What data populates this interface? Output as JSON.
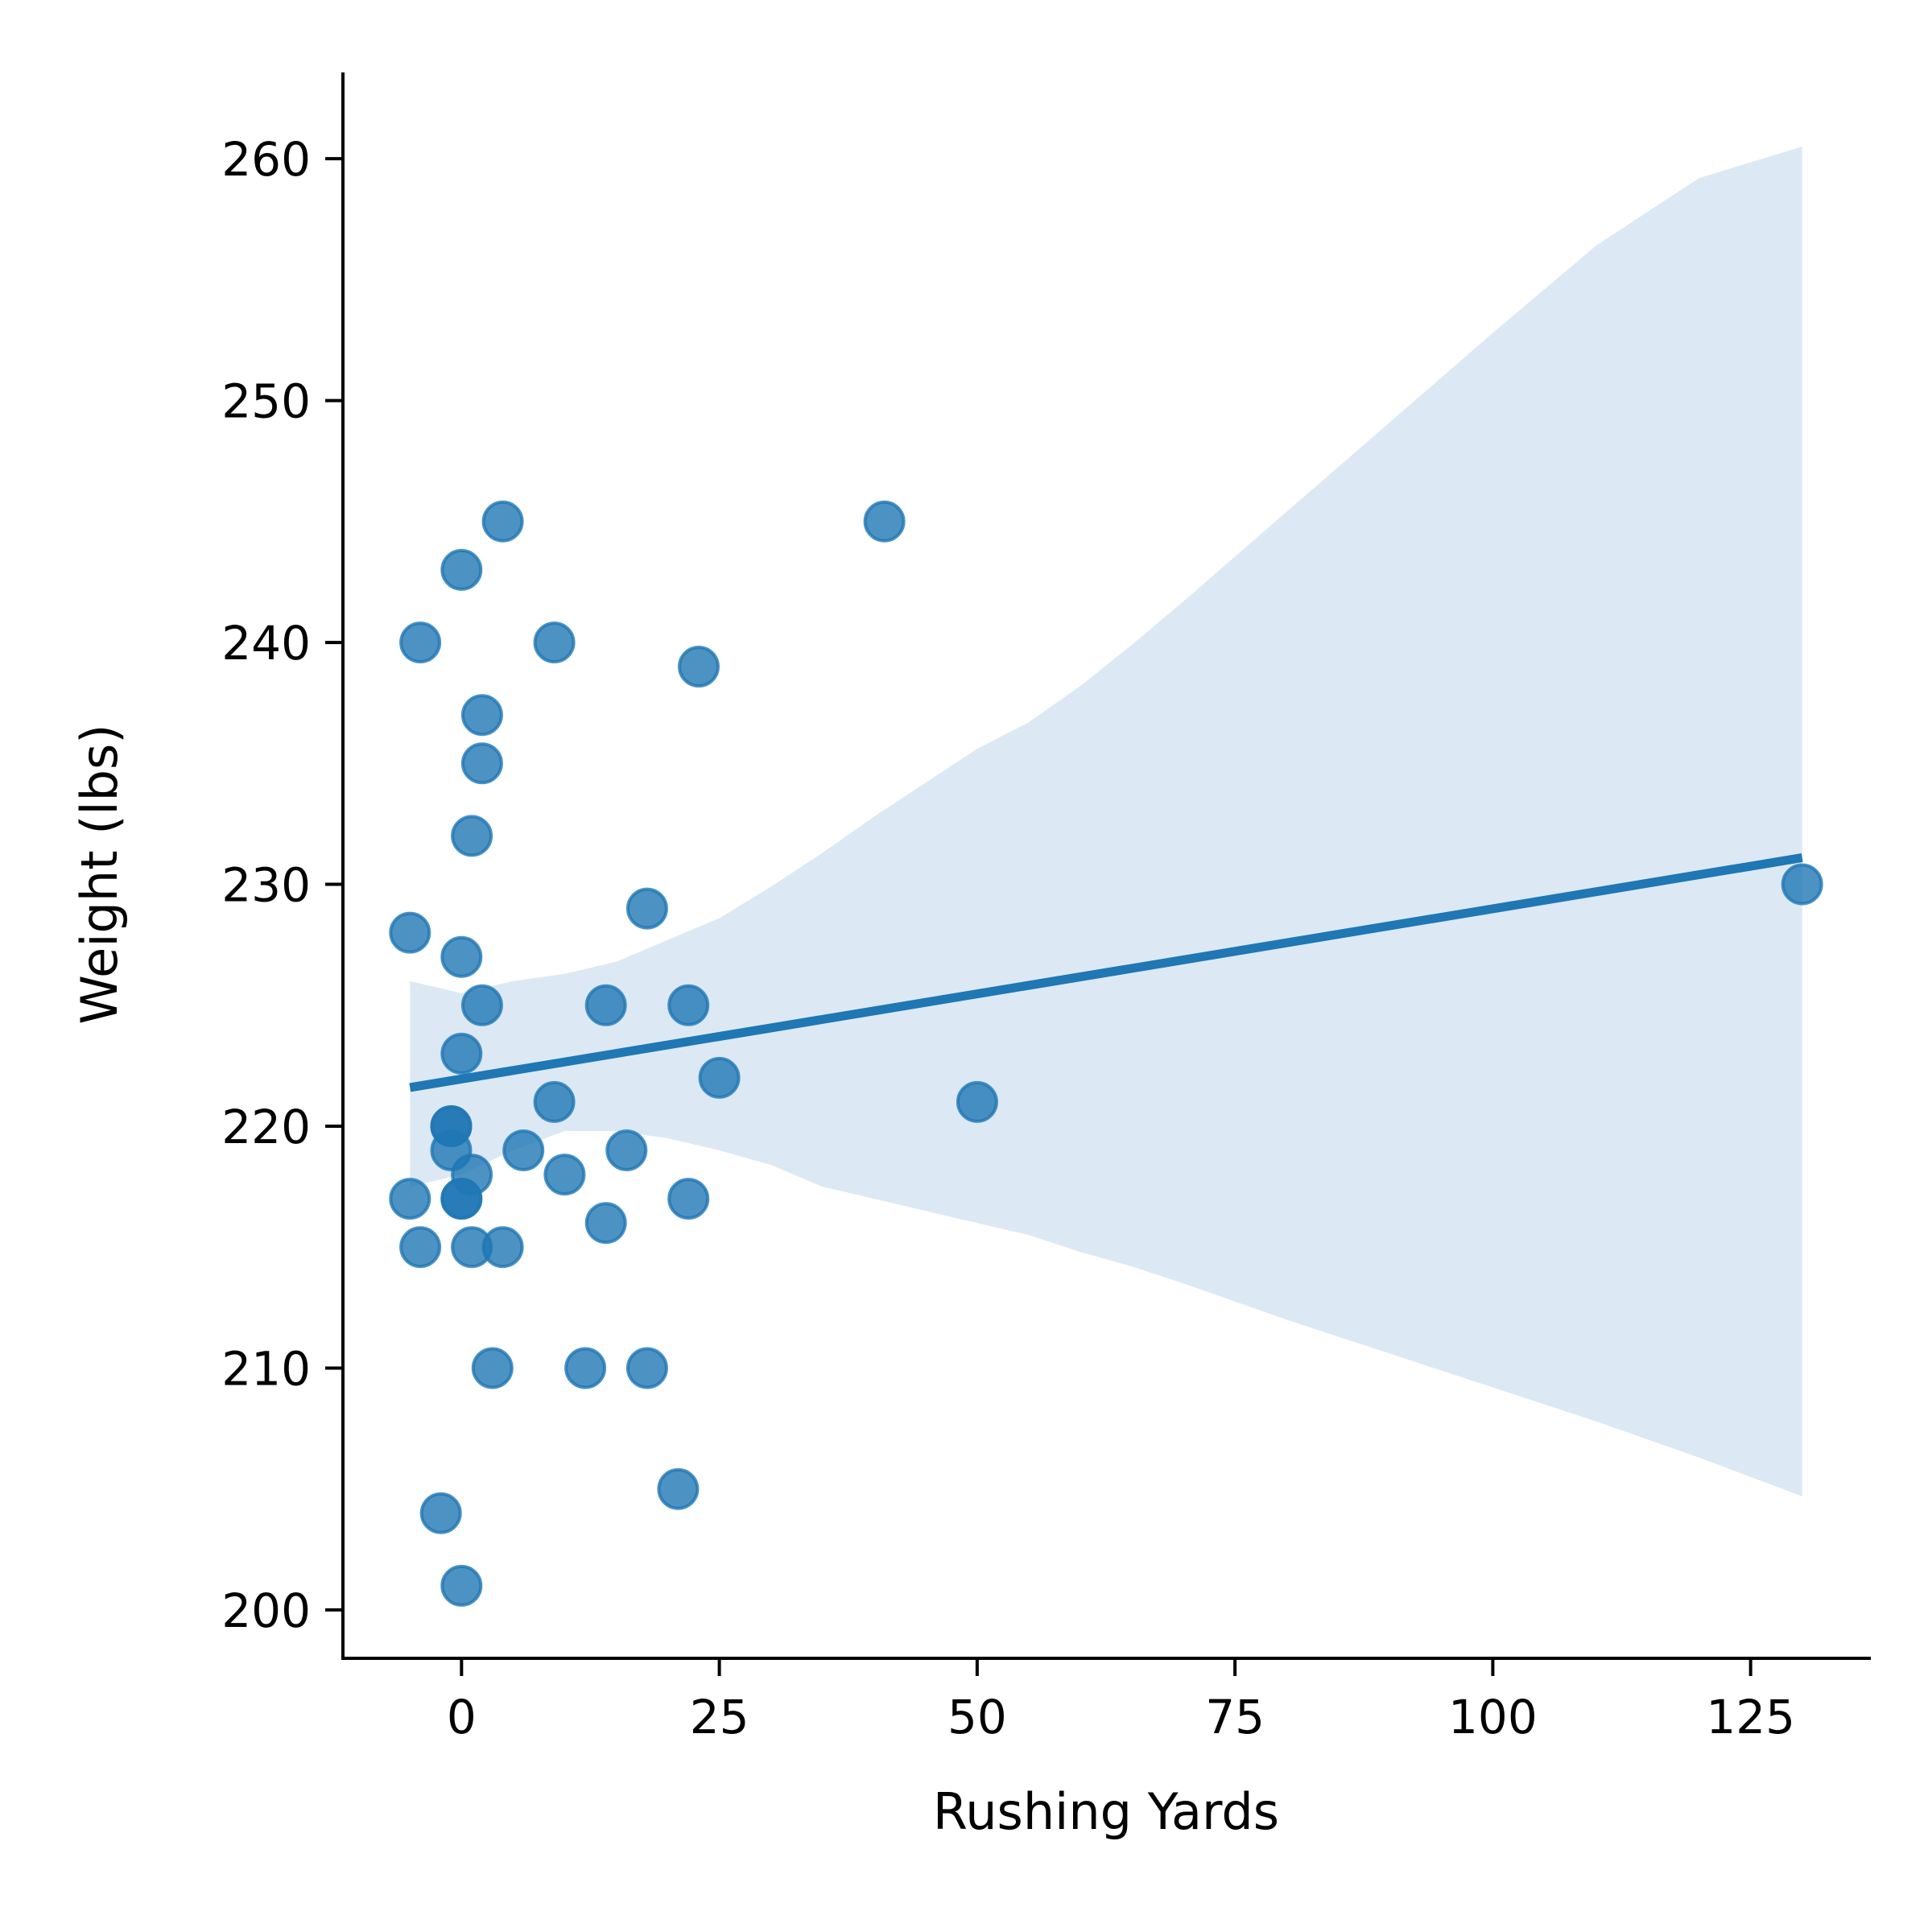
{
  "chart_data": {
    "type": "scatter",
    "title": "",
    "xlabel": "Rushing Yards",
    "ylabel": "Weight (lbs)",
    "xlim": [
      -11.5,
      136.5
    ],
    "ylim": [
      198,
      263.5
    ],
    "xticks": [
      0,
      25,
      50,
      75,
      100,
      125
    ],
    "yticks": [
      200,
      210,
      220,
      230,
      240,
      250,
      260
    ],
    "xtick_labels": [
      "0",
      "25",
      "50",
      "75",
      "100",
      "125"
    ],
    "ytick_labels": [
      "200",
      "210",
      "220",
      "230",
      "240",
      "250",
      "260"
    ],
    "grid": false,
    "legend": "none",
    "colors": {
      "points": "#1f77b4",
      "line": "#1f77b4",
      "band": "#dce9f4",
      "axis": "#000000"
    },
    "points": [
      {
        "x": 4,
        "y": 245
      },
      {
        "x": 41,
        "y": 245
      },
      {
        "x": 0,
        "y": 243
      },
      {
        "x": -4,
        "y": 240
      },
      {
        "x": 9,
        "y": 240
      },
      {
        "x": 23,
        "y": 239
      },
      {
        "x": 2,
        "y": 237
      },
      {
        "x": 2,
        "y": 235
      },
      {
        "x": 1,
        "y": 232
      },
      {
        "x": 18,
        "y": 229
      },
      {
        "x": 130,
        "y": 230
      },
      {
        "x": -5,
        "y": 228
      },
      {
        "x": 0,
        "y": 227
      },
      {
        "x": 2,
        "y": 225
      },
      {
        "x": 14,
        "y": 225
      },
      {
        "x": 22,
        "y": 225
      },
      {
        "x": 0,
        "y": 223
      },
      {
        "x": 25,
        "y": 222
      },
      {
        "x": 9,
        "y": 221
      },
      {
        "x": 50,
        "y": 221
      },
      {
        "x": -1,
        "y": 220
      },
      {
        "x": -1,
        "y": 220
      },
      {
        "x": -1,
        "y": 219
      },
      {
        "x": 6,
        "y": 219
      },
      {
        "x": 16,
        "y": 219
      },
      {
        "x": 1,
        "y": 218
      },
      {
        "x": 10,
        "y": 218
      },
      {
        "x": -5,
        "y": 217
      },
      {
        "x": 0,
        "y": 217
      },
      {
        "x": 0,
        "y": 217
      },
      {
        "x": 22,
        "y": 217
      },
      {
        "x": 14,
        "y": 216
      },
      {
        "x": -4,
        "y": 215
      },
      {
        "x": 1,
        "y": 215
      },
      {
        "x": 4,
        "y": 215
      },
      {
        "x": 3,
        "y": 210
      },
      {
        "x": 12,
        "y": 210
      },
      {
        "x": 18,
        "y": 210
      },
      {
        "x": 21,
        "y": 205
      },
      {
        "x": -2,
        "y": 204
      },
      {
        "x": 0,
        "y": 201
      }
    ],
    "regression_line": [
      {
        "x": -5,
        "y": 221.6
      },
      {
        "x": 130,
        "y": 231.1
      }
    ],
    "confidence_band": [
      {
        "x": -5,
        "lower": 217.5,
        "upper": 226
      },
      {
        "x": 0,
        "lower": 218,
        "upper": 225.5
      },
      {
        "x": 5,
        "lower": 219,
        "upper": 226
      },
      {
        "x": 10,
        "lower": 219.8,
        "upper": 226.3
      },
      {
        "x": 15,
        "lower": 219.8,
        "upper": 226.8
      },
      {
        "x": 20,
        "lower": 219.5,
        "upper": 227.7
      },
      {
        "x": 25,
        "lower": 219,
        "upper": 228.6
      },
      {
        "x": 30,
        "lower": 218.4,
        "upper": 229.9
      },
      {
        "x": 35,
        "lower": 217.5,
        "upper": 231.3
      },
      {
        "x": 40,
        "lower": 217,
        "upper": 232.8
      },
      {
        "x": 45,
        "lower": 216.5,
        "upper": 234.2
      },
      {
        "x": 50,
        "lower": 216,
        "upper": 235.6
      },
      {
        "x": 55,
        "lower": 215.5,
        "upper": 236.7
      },
      {
        "x": 60,
        "lower": 214.8,
        "upper": 238.2
      },
      {
        "x": 65,
        "lower": 214.2,
        "upper": 239.9
      },
      {
        "x": 70,
        "lower": 213.5,
        "upper": 241.7
      },
      {
        "x": 80,
        "lower": 212,
        "upper": 245.4
      },
      {
        "x": 90,
        "lower": 210.6,
        "upper": 249.1
      },
      {
        "x": 100,
        "lower": 209.2,
        "upper": 252.8
      },
      {
        "x": 110,
        "lower": 207.8,
        "upper": 256.4
      },
      {
        "x": 120,
        "lower": 206.3,
        "upper": 259.2
      },
      {
        "x": 130,
        "lower": 204.7,
        "upper": 260.5
      }
    ]
  }
}
